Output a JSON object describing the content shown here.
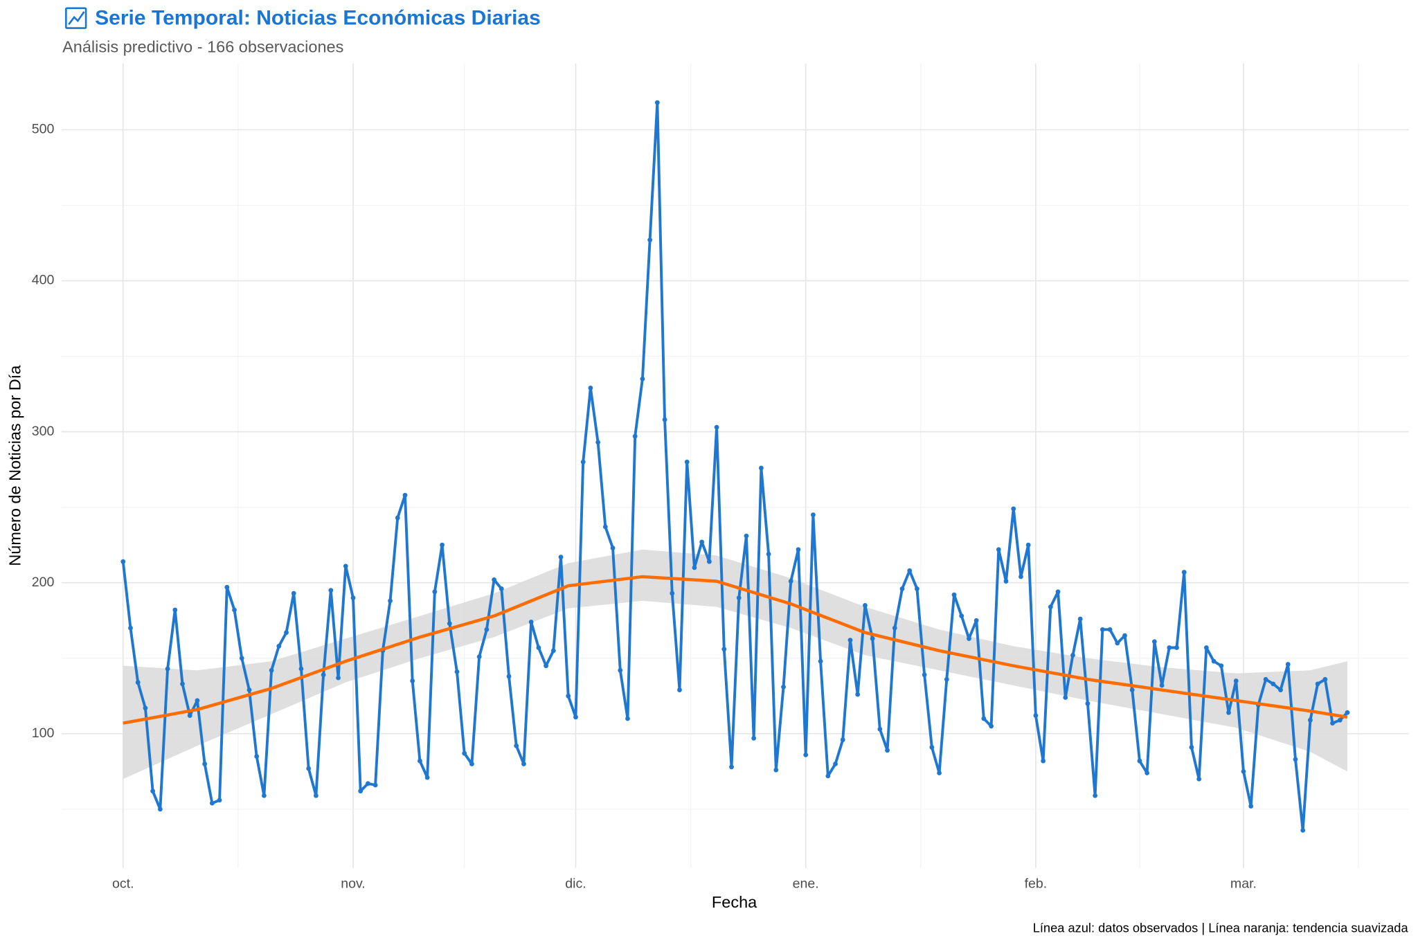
{
  "chart_data": {
    "type": "line",
    "title": "Serie Temporal: Noticias Económicas Diarias",
    "subtitle": "Análisis predictivo - 166 observaciones",
    "x_label": "Fecha",
    "y_label": "Número de Noticias por Día",
    "caption": "Línea azul: datos observados | Línea naranja: tendencia suavizada",
    "x": [
      0,
      1,
      2,
      3,
      4,
      5,
      6,
      7,
      8,
      9,
      10,
      11,
      12,
      13,
      14,
      15,
      16,
      17,
      18,
      19,
      20,
      21,
      22,
      23,
      24,
      25,
      26,
      27,
      28,
      29,
      30,
      31,
      32,
      33,
      34,
      35,
      36,
      37,
      38,
      39,
      40,
      41,
      42,
      43,
      44,
      45,
      46,
      47,
      48,
      49,
      50,
      51,
      52,
      53,
      54,
      55,
      56,
      57,
      58,
      59,
      60,
      61,
      62,
      63,
      64,
      65,
      66,
      67,
      68,
      69,
      70,
      71,
      72,
      73,
      74,
      75,
      76,
      77,
      78,
      79,
      80,
      81,
      82,
      83,
      84,
      85,
      86,
      87,
      88,
      89,
      90,
      91,
      92,
      93,
      94,
      95,
      96,
      97,
      98,
      99,
      100,
      101,
      102,
      103,
      104,
      105,
      106,
      107,
      108,
      109,
      110,
      111,
      112,
      113,
      114,
      115,
      116,
      117,
      118,
      119,
      120,
      121,
      122,
      123,
      124,
      125,
      126,
      127,
      128,
      129,
      130,
      131,
      132,
      133,
      134,
      135,
      136,
      137,
      138,
      139,
      140,
      141,
      142,
      143,
      144,
      145,
      146,
      147,
      148,
      149,
      150,
      151,
      152,
      153,
      154,
      155,
      156,
      157,
      158,
      159,
      160,
      161,
      162,
      163,
      164,
      165
    ],
    "values": [
      214,
      170,
      134,
      117,
      62,
      50,
      143,
      182,
      133,
      112,
      122,
      80,
      54,
      56,
      197,
      182,
      150,
      129,
      85,
      59,
      142,
      158,
      167,
      193,
      143,
      77,
      59,
      139,
      195,
      137,
      211,
      190,
      62,
      67,
      66,
      155,
      188,
      243,
      258,
      135,
      82,
      71,
      194,
      225,
      173,
      141,
      87,
      80,
      151,
      169,
      202,
      196,
      138,
      92,
      80,
      174,
      157,
      145,
      155,
      217,
      125,
      111,
      280,
      329,
      293,
      237,
      223,
      142,
      110,
      297,
      335,
      427,
      518,
      308,
      193,
      129,
      280,
      210,
      227,
      214,
      303,
      156,
      78,
      190,
      231,
      97,
      276,
      219,
      76,
      131,
      201,
      222,
      86,
      245,
      148,
      72,
      80,
      96,
      162,
      126,
      185,
      163,
      103,
      89,
      170,
      196,
      208,
      196,
      139,
      91,
      74,
      136,
      192,
      178,
      163,
      175,
      110,
      105,
      222,
      201,
      249,
      204,
      225,
      112,
      82,
      184,
      194,
      124,
      152,
      176,
      120,
      59,
      169,
      169,
      160,
      165,
      129,
      82,
      74,
      161,
      132,
      157,
      157,
      207,
      91,
      70,
      157,
      148,
      145,
      114,
      135,
      75,
      52,
      119,
      136,
      133,
      129,
      146,
      83,
      36,
      109,
      133,
      136,
      107,
      109,
      114
    ],
    "color": "#1f77d0",
    "trend": {
      "x": [
        0,
        10,
        20,
        30,
        40,
        50,
        60,
        70,
        80,
        90,
        100,
        110,
        120,
        130,
        140,
        150,
        160,
        165
      ],
      "values": [
        107,
        116,
        130,
        148,
        164,
        178,
        198,
        204,
        201,
        186,
        167,
        155,
        145,
        136,
        129,
        122,
        115,
        111
      ],
      "lower": [
        70,
        92,
        113,
        134,
        150,
        164,
        183,
        188,
        184,
        170,
        152,
        142,
        132,
        122,
        113,
        104,
        88,
        75
      ],
      "upper": [
        145,
        142,
        148,
        163,
        178,
        193,
        213,
        222,
        218,
        203,
        184,
        169,
        158,
        150,
        144,
        140,
        142,
        148
      ],
      "color": "#ff6d00",
      "band_color": "#d9d9d9"
    },
    "xlim": [
      -8.3,
      173.3
    ],
    "ylim": [
      11,
      544
    ],
    "xticks": [
      {
        "value": 0,
        "label": "oct."
      },
      {
        "value": 31,
        "label": "nov."
      },
      {
        "value": 61,
        "label": "dic."
      },
      {
        "value": 92,
        "label": "ene."
      },
      {
        "value": 123,
        "label": "feb."
      },
      {
        "value": 151,
        "label": "mar."
      }
    ],
    "xminor": [
      15.5,
      46,
      76.5,
      107.5,
      137,
      166.5
    ],
    "yticks": [
      100,
      200,
      300,
      400,
      500
    ],
    "yminor": [
      50,
      150,
      250,
      350,
      450
    ],
    "grid": true
  }
}
